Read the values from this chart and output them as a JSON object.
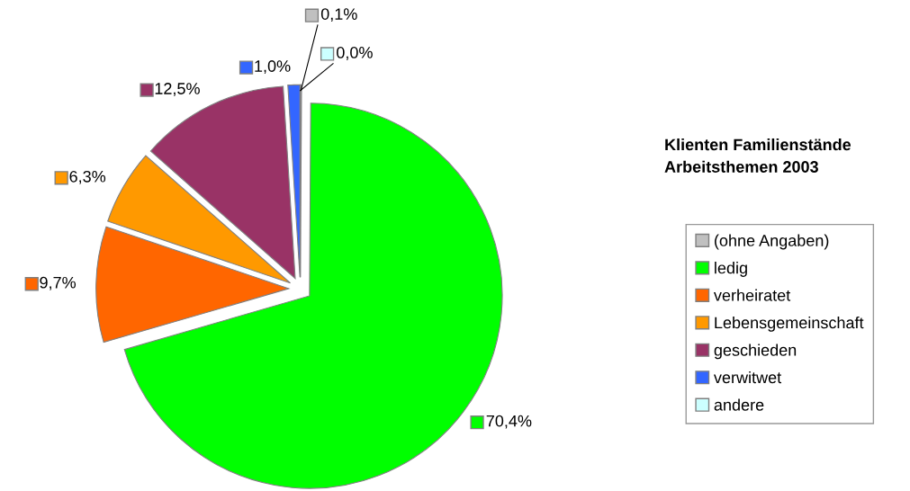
{
  "chart_data": {
    "type": "pie",
    "title": "Klienten Familienstände\nArbeitsthemen 2003",
    "categories": [
      "(ohne Angaben)",
      "ledig",
      "verheiratet",
      "Lebensgemeinschaft",
      "geschieden",
      "verwitwet",
      "andere"
    ],
    "values": [
      0.1,
      70.4,
      9.7,
      6.3,
      12.5,
      1.0,
      0.0
    ],
    "value_labels": [
      "0,1%",
      "70,4%",
      "9,7%",
      "6,3%",
      "12,5%",
      "1,0%",
      "0,0%"
    ],
    "colors": [
      "#c0c0c0",
      "#00ff00",
      "#ff6600",
      "#ff9900",
      "#993366",
      "#3366ff",
      "#ccffff"
    ],
    "legend": "right"
  }
}
